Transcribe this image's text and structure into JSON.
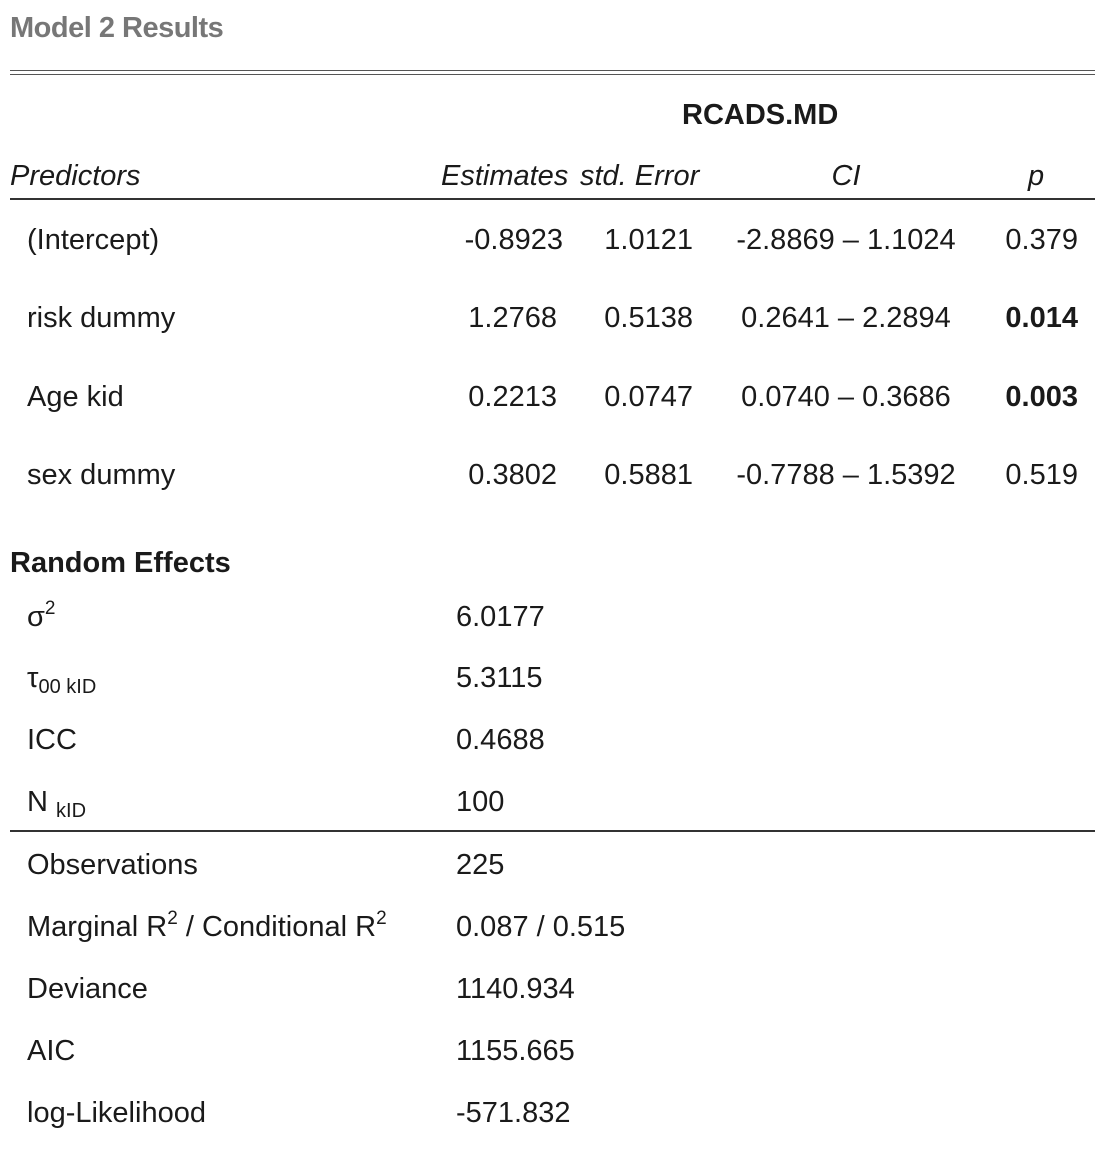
{
  "caption": "Model 2 Results",
  "dependent_variable": "RCADS.MD",
  "columns": {
    "predictors": "Predictors",
    "estimates": "Estimates",
    "std_error": "std. Error",
    "ci": "CI",
    "p": "p"
  },
  "rows": [
    {
      "predictor": "(Intercept)",
      "estimate": "-0.8923",
      "std_error": "1.0121",
      "ci": "-2.8869 – 1.1024",
      "p": "0.379",
      "significant": false
    },
    {
      "predictor": "risk dummy",
      "estimate": "1.2768",
      "std_error": "0.5138",
      "ci": "0.2641 – 2.2894",
      "p": "0.014",
      "significant": true
    },
    {
      "predictor": "Age kid",
      "estimate": "0.2213",
      "std_error": "0.0747",
      "ci": "0.0740 – 0.3686",
      "p": "0.003",
      "significant": true
    },
    {
      "predictor": "sex dummy",
      "estimate": "0.3802",
      "std_error": "0.5881",
      "ci": "-0.7788 – 1.5392",
      "p": "0.519",
      "significant": false
    }
  ],
  "random_effects": {
    "heading": "Random Effects",
    "sigma2": {
      "symbol": "σ",
      "sup": "2",
      "value": "6.0177"
    },
    "tau00": {
      "symbol": "τ",
      "sub": "00 kID",
      "value": "5.3115"
    },
    "icc": {
      "label": "ICC",
      "value": "0.4688"
    },
    "n": {
      "symbol": "N",
      "sub": "kID",
      "value": "100"
    }
  },
  "fit": {
    "observations": {
      "label": "Observations",
      "value": "225"
    },
    "r2": {
      "label_a": "Marginal R",
      "sup_a": "2",
      "label_b": " / Conditional R",
      "sup_b": "2",
      "value": "0.087 / 0.515"
    },
    "deviance": {
      "label": "Deviance",
      "value": "1140.934"
    },
    "aic": {
      "label": "AIC",
      "value": "1155.665"
    },
    "loglik": {
      "label": "log-Likelihood",
      "value": "-571.832"
    }
  }
}
